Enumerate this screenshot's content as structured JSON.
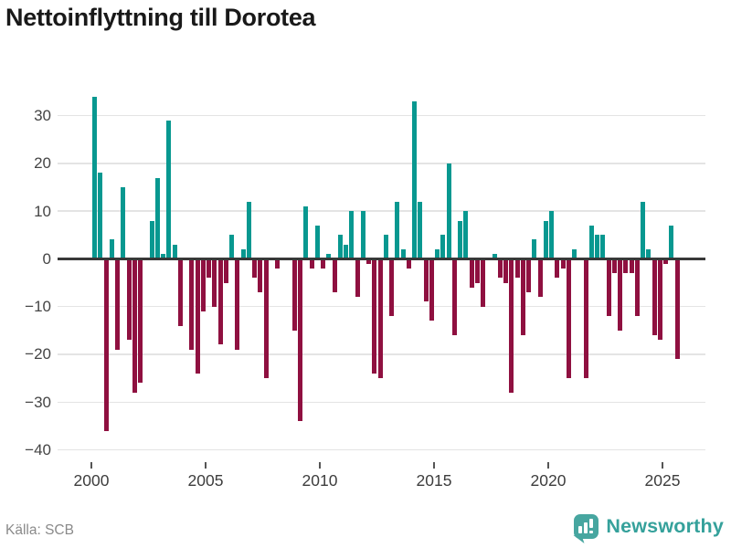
{
  "title": "Nettoinflyttning till Dorotea",
  "source": "Källa: SCB",
  "brand": {
    "name": "Newsworthy",
    "color": "#35a19b",
    "icon_color": "#47a6a0"
  },
  "colors": {
    "positive": "#089890",
    "negative": "#8f1040",
    "gridline": "#e4e4e4",
    "zero_line": "#383838",
    "title_text": "#191919",
    "axis_text": "#454545",
    "source_text": "#8a8a8a"
  },
  "chart_data": {
    "type": "bar",
    "title": "Nettoinflyttning till Dorotea",
    "xlabel": "",
    "ylabel": "",
    "frequency": "quarterly",
    "start_period": "2000 Q1",
    "end_period": "2025 Q3",
    "x_tick_years": [
      2000,
      2005,
      2010,
      2015,
      2020,
      2025
    ],
    "y_ticks": [
      30,
      20,
      10,
      0,
      -10,
      -20,
      -30,
      -40
    ],
    "ylim": [
      -40,
      35
    ],
    "grid": true,
    "legend": false,
    "series": [
      {
        "name": "Nettoinflyttning",
        "values": [
          34,
          18,
          -36,
          4,
          -19,
          15,
          -17,
          -28,
          -26,
          0,
          8,
          17,
          1,
          29,
          3,
          -14,
          0,
          -19,
          -24,
          -11,
          -4,
          -10,
          -18,
          -5,
          5,
          -19,
          2,
          12,
          -4,
          -7,
          -25,
          0,
          -2,
          0,
          0,
          -15,
          -34,
          11,
          -2,
          7,
          -2,
          1,
          -7,
          5,
          3,
          10,
          -8,
          10,
          -1,
          -24,
          -25,
          5,
          -12,
          12,
          2,
          -2,
          33,
          12,
          -9,
          -13,
          2,
          5,
          20,
          -16,
          8,
          10,
          -6,
          -5,
          -10,
          0,
          1,
          -4,
          -5,
          -28,
          -4,
          -16,
          -7,
          4,
          -8,
          8,
          10,
          -4,
          -2,
          -25,
          2,
          0,
          -25,
          7,
          5,
          5,
          -12,
          -3,
          -15,
          -3,
          -3,
          -12,
          12,
          2,
          -16,
          -17,
          -1,
          7,
          -21
        ]
      }
    ]
  }
}
